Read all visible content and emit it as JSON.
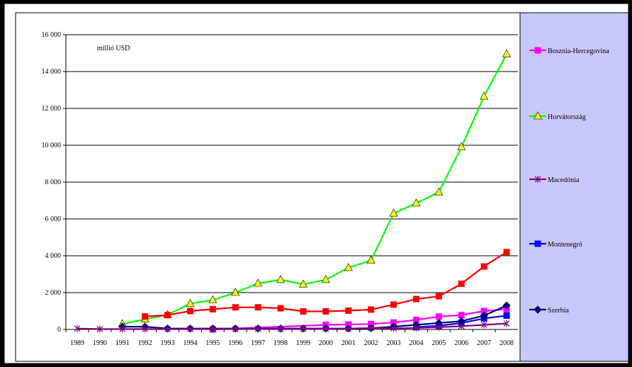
{
  "chart_data": {
    "type": "line",
    "unit_label": "millió USD",
    "x": [
      "1989",
      "1990",
      "1991",
      "1992",
      "1993",
      "1994",
      "1995",
      "1996",
      "1997",
      "1998",
      "1999",
      "2000",
      "2001",
      "2002",
      "2003",
      "2004",
      "2005",
      "2006",
      "2007",
      "2008"
    ],
    "ylim": [
      0,
      16000
    ],
    "yticks": [
      0,
      2000,
      4000,
      6000,
      8000,
      10000,
      12000,
      14000,
      16000
    ],
    "ytick_labels": [
      "0",
      "2 000",
      "4 000",
      "6 000",
      "8 000",
      "10 000",
      "12 000",
      "14 000",
      "16 000"
    ],
    "grid": true,
    "legend_position": "right",
    "series": [
      {
        "name": "Bosznia-Hercegovina",
        "color": "#ff00ff",
        "marker": "square",
        "values": [
          null,
          null,
          null,
          null,
          null,
          null,
          0,
          null,
          null,
          null,
          null,
          250,
          270,
          300,
          380,
          520,
          700,
          780,
          1000,
          1100
        ]
      },
      {
        "name": "Horvátország",
        "color": "#00ff00",
        "marker": "triangle",
        "values": [
          null,
          null,
          300,
          550,
          800,
          1400,
          1600,
          2000,
          2500,
          2700,
          2450,
          2700,
          3350,
          3750,
          6300,
          6850,
          7450,
          9900,
          12650,
          14950
        ]
      },
      {
        "name": "Macedónia",
        "color": "#800080",
        "marker": "star",
        "values": [
          50,
          20,
          20,
          20,
          20,
          20,
          20,
          20,
          30,
          20,
          30,
          30,
          40,
          80,
          60,
          80,
          120,
          180,
          250,
          320
        ]
      },
      {
        "name": "Montenegró",
        "color": "#0000ff",
        "marker": "square",
        "values": [
          null,
          null,
          null,
          null,
          null,
          null,
          null,
          null,
          null,
          null,
          null,
          null,
          null,
          null,
          null,
          130,
          200,
          350,
          600,
          750
        ]
      },
      {
        "name": "Szerbia",
        "color": "#000080",
        "marker": "diamond",
        "values": [
          null,
          null,
          150,
          150,
          50,
          50,
          50,
          50,
          50,
          50,
          50,
          50,
          50,
          70,
          150,
          250,
          350,
          450,
          750,
          1300
        ]
      },
      {
        "name": "",
        "color": "#ff0000",
        "marker": "square",
        "values": [
          null,
          null,
          null,
          700,
          780,
          1000,
          1100,
          1200,
          1200,
          1150,
          980,
          980,
          1020,
          1080,
          1350,
          1650,
          1800,
          2480,
          3420,
          4200
        ]
      }
    ]
  }
}
